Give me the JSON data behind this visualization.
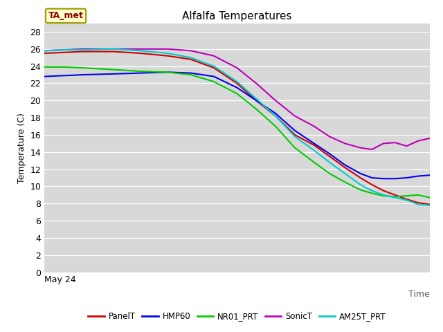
{
  "title": "Alfalfa Temperatures",
  "xlabel": "Time",
  "ylabel": "Temperature (C)",
  "ylim": [
    0,
    29
  ],
  "yticks": [
    0,
    2,
    4,
    6,
    8,
    10,
    12,
    14,
    16,
    18,
    20,
    22,
    24,
    26,
    28
  ],
  "x_label_text": "May 24",
  "annotation_text": "TA_met",
  "plot_bg_color": "#d8d8d8",
  "fig_bg_color": "#ffffff",
  "grid_color": "#c0c0c0",
  "series": {
    "PanelT": {
      "color": "#cc0000",
      "points": [
        [
          0.0,
          25.5
        ],
        [
          0.05,
          25.6
        ],
        [
          0.1,
          25.7
        ],
        [
          0.18,
          25.7
        ],
        [
          0.25,
          25.5
        ],
        [
          0.32,
          25.2
        ],
        [
          0.38,
          24.8
        ],
        [
          0.44,
          23.8
        ],
        [
          0.5,
          22.0
        ],
        [
          0.55,
          20.0
        ],
        [
          0.6,
          18.2
        ],
        [
          0.65,
          16.0
        ],
        [
          0.7,
          14.8
        ],
        [
          0.74,
          13.5
        ],
        [
          0.78,
          12.2
        ],
        [
          0.82,
          11.0
        ],
        [
          0.85,
          10.2
        ],
        [
          0.88,
          9.5
        ],
        [
          0.91,
          9.0
        ],
        [
          0.94,
          8.5
        ],
        [
          0.97,
          8.1
        ],
        [
          1.0,
          7.9
        ]
      ]
    },
    "HMP60": {
      "color": "#0000ee",
      "points": [
        [
          0.0,
          22.8
        ],
        [
          0.05,
          22.9
        ],
        [
          0.1,
          23.0
        ],
        [
          0.18,
          23.1
        ],
        [
          0.25,
          23.2
        ],
        [
          0.32,
          23.3
        ],
        [
          0.38,
          23.2
        ],
        [
          0.44,
          22.8
        ],
        [
          0.5,
          21.5
        ],
        [
          0.55,
          20.0
        ],
        [
          0.6,
          18.5
        ],
        [
          0.65,
          16.5
        ],
        [
          0.7,
          15.0
        ],
        [
          0.74,
          13.8
        ],
        [
          0.78,
          12.5
        ],
        [
          0.82,
          11.5
        ],
        [
          0.85,
          11.0
        ],
        [
          0.88,
          10.9
        ],
        [
          0.91,
          10.9
        ],
        [
          0.94,
          11.0
        ],
        [
          0.97,
          11.2
        ],
        [
          1.0,
          11.3
        ]
      ]
    },
    "NR01_PRT": {
      "color": "#00cc00",
      "points": [
        [
          0.0,
          23.9
        ],
        [
          0.05,
          23.9
        ],
        [
          0.1,
          23.8
        ],
        [
          0.18,
          23.6
        ],
        [
          0.25,
          23.4
        ],
        [
          0.32,
          23.3
        ],
        [
          0.38,
          23.0
        ],
        [
          0.44,
          22.2
        ],
        [
          0.5,
          20.8
        ],
        [
          0.55,
          19.0
        ],
        [
          0.6,
          17.0
        ],
        [
          0.65,
          14.5
        ],
        [
          0.7,
          12.8
        ],
        [
          0.74,
          11.5
        ],
        [
          0.78,
          10.5
        ],
        [
          0.82,
          9.6
        ],
        [
          0.85,
          9.2
        ],
        [
          0.88,
          8.9
        ],
        [
          0.91,
          8.8
        ],
        [
          0.94,
          8.9
        ],
        [
          0.97,
          9.0
        ],
        [
          1.0,
          8.7
        ]
      ]
    },
    "SonicT": {
      "color": "#bb00bb",
      "points": [
        [
          0.0,
          25.8
        ],
        [
          0.05,
          25.9
        ],
        [
          0.1,
          26.0
        ],
        [
          0.18,
          26.0
        ],
        [
          0.25,
          26.0
        ],
        [
          0.32,
          26.0
        ],
        [
          0.38,
          25.8
        ],
        [
          0.44,
          25.2
        ],
        [
          0.5,
          23.8
        ],
        [
          0.55,
          22.0
        ],
        [
          0.6,
          20.0
        ],
        [
          0.65,
          18.2
        ],
        [
          0.7,
          17.0
        ],
        [
          0.74,
          15.8
        ],
        [
          0.78,
          15.0
        ],
        [
          0.82,
          14.5
        ],
        [
          0.85,
          14.3
        ],
        [
          0.88,
          15.0
        ],
        [
          0.91,
          15.1
        ],
        [
          0.94,
          14.7
        ],
        [
          0.97,
          15.3
        ],
        [
          1.0,
          15.6
        ]
      ]
    },
    "AM25T_PRT": {
      "color": "#00cccc",
      "points": [
        [
          0.0,
          25.8
        ],
        [
          0.05,
          25.9
        ],
        [
          0.1,
          25.9
        ],
        [
          0.18,
          26.0
        ],
        [
          0.25,
          25.8
        ],
        [
          0.32,
          25.5
        ],
        [
          0.38,
          25.0
        ],
        [
          0.44,
          24.0
        ],
        [
          0.5,
          22.2
        ],
        [
          0.55,
          20.2
        ],
        [
          0.6,
          18.2
        ],
        [
          0.65,
          15.8
        ],
        [
          0.7,
          14.2
        ],
        [
          0.74,
          12.8
        ],
        [
          0.78,
          11.5
        ],
        [
          0.82,
          10.2
        ],
        [
          0.85,
          9.5
        ],
        [
          0.88,
          9.0
        ],
        [
          0.91,
          8.7
        ],
        [
          0.94,
          8.4
        ],
        [
          0.97,
          7.9
        ],
        [
          1.0,
          7.8
        ]
      ]
    }
  },
  "legend_order": [
    "PanelT",
    "HMP60",
    "NR01_PRT",
    "SonicT",
    "AM25T_PRT"
  ]
}
